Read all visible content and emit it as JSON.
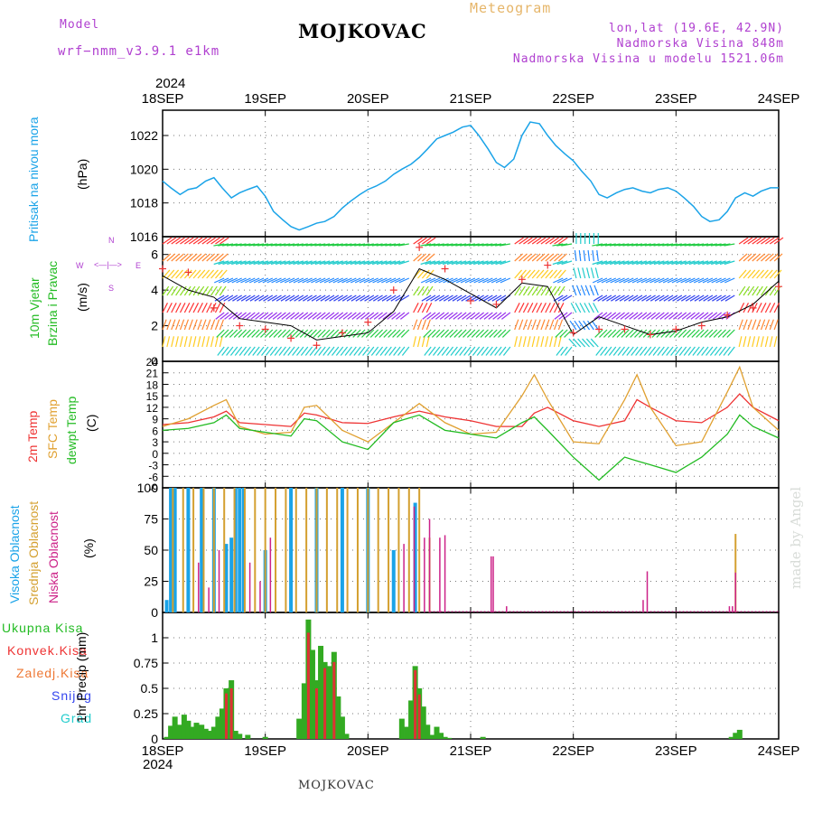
{
  "header": {
    "model_label": "Model",
    "model_name": "wrf−nmm_v3.9.1 e1km",
    "station": "MOJKOVAC",
    "app_title": "Meteogram",
    "coords": "lon,lat (19.6E, 42.9N)",
    "elevation": "Nadmorska Visina 848m",
    "model_elevation": "Nadmorska Visina u modelu 1521.06m",
    "watermark": "made by Angel",
    "footer": "MOJKOVAC",
    "year": "2024"
  },
  "colors": {
    "pressure": "#1aa3e8",
    "temp2m": "#ee3333",
    "sfc": "#e0a030",
    "dew": "#22bb22",
    "high_cloud": "#1aa3e8",
    "mid_cloud": "#d4a030",
    "low_cloud": "#cc2288",
    "precip_total": "#33aa22",
    "precip_conv": "#dd3333"
  },
  "x_ticks": [
    "18SEP",
    "19SEP",
    "20SEP",
    "21SEP",
    "22SEP",
    "23SEP",
    "24SEP"
  ],
  "chart_data": [
    {
      "type": "line",
      "name": "pressure",
      "ylabel_lines": [
        "Pritisak na nivou mora",
        "(hPa)"
      ],
      "ylim": [
        1016,
        1023.5
      ],
      "yticks": [
        1016,
        1018,
        1020,
        1022
      ],
      "grid": true,
      "series": [
        {
          "x": [
            0,
            0.08,
            0.17,
            0.25,
            0.33,
            0.42,
            0.5,
            0.58,
            0.67,
            0.75,
            0.83,
            0.92,
            1.0,
            1.08,
            1.17,
            1.25,
            1.33,
            1.42,
            1.5,
            1.58,
            1.67,
            1.75,
            1.83,
            1.92,
            2.0,
            2.08,
            2.17,
            2.25,
            2.33,
            2.42,
            2.5,
            2.58,
            2.67,
            2.75,
            2.83,
            2.92,
            3.0,
            3.08,
            3.17,
            3.25,
            3.33,
            3.42,
            3.5,
            3.58,
            3.67,
            3.75,
            3.83,
            3.92,
            4.0,
            4.08,
            4.17,
            4.25,
            4.33,
            4.42,
            4.5,
            4.58,
            4.67,
            4.75,
            4.83,
            4.92,
            5.0,
            5.08,
            5.17,
            5.25,
            5.33,
            5.42,
            5.5,
            5.58,
            5.67,
            5.75,
            5.83,
            5.92,
            6.0
          ],
          "y": [
            1019.3,
            1018.9,
            1018.5,
            1018.8,
            1018.9,
            1019.3,
            1019.5,
            1018.9,
            1018.3,
            1018.6,
            1018.8,
            1019.0,
            1018.4,
            1017.5,
            1017.0,
            1016.6,
            1016.4,
            1016.6,
            1016.8,
            1016.9,
            1017.2,
            1017.7,
            1018.1,
            1018.5,
            1018.8,
            1019.0,
            1019.3,
            1019.7,
            1020.0,
            1020.3,
            1020.7,
            1021.2,
            1021.8,
            1022.0,
            1022.2,
            1022.5,
            1022.6,
            1022.0,
            1021.2,
            1020.4,
            1020.1,
            1020.6,
            1022.0,
            1022.8,
            1022.7,
            1022.0,
            1021.4,
            1020.9,
            1020.5,
            1019.9,
            1019.3,
            1018.5,
            1018.3,
            1018.6,
            1018.8,
            1018.9,
            1018.7,
            1018.6,
            1018.8,
            1018.9,
            1018.7,
            1018.3,
            1017.8,
            1017.2,
            1016.9,
            1017.0,
            1017.5,
            1018.3,
            1018.6,
            1018.4,
            1018.7,
            1018.9,
            1018.9
          ]
        }
      ]
    },
    {
      "type": "line",
      "name": "wind",
      "ylabel_lines": [
        "10m Vjetar",
        "Brzina i Pravac",
        "(m/s)"
      ],
      "compass_labels": {
        "n": "N",
        "s": "S",
        "e": "E",
        "w": "W"
      },
      "ylim": [
        0,
        7
      ],
      "yticks": [
        0,
        2,
        4,
        6
      ],
      "grid": true,
      "series": [
        {
          "label": "speed",
          "x": [
            0,
            0.25,
            0.5,
            0.75,
            1.0,
            1.25,
            1.5,
            1.75,
            2.0,
            2.25,
            2.5,
            2.75,
            3.0,
            3.25,
            3.5,
            3.75,
            4.0,
            4.25,
            4.5,
            4.75,
            5.0,
            5.25,
            5.5,
            5.75,
            6.0
          ],
          "y": [
            4.8,
            4.0,
            3.6,
            2.4,
            2.2,
            2.0,
            1.2,
            1.4,
            1.6,
            2.8,
            5.2,
            4.6,
            3.8,
            3.0,
            4.4,
            4.2,
            1.5,
            2.5,
            2.0,
            1.5,
            1.7,
            2.2,
            2.5,
            3.2,
            4.5
          ]
        },
        {
          "label": "gust",
          "x": [
            0,
            0.25,
            0.5,
            0.75,
            1.0,
            1.25,
            1.5,
            1.75,
            2.0,
            2.25,
            2.5,
            2.75,
            3.0,
            3.25,
            3.5,
            3.75,
            4.0,
            4.25,
            4.5,
            4.75,
            5.0,
            5.25,
            5.5,
            5.75,
            6.0
          ],
          "y": [
            5.2,
            5.0,
            3.0,
            2.0,
            1.8,
            1.3,
            0.9,
            1.6,
            2.2,
            4.0,
            6.4,
            5.2,
            3.4,
            3.2,
            4.6,
            5.4,
            1.6,
            1.8,
            1.8,
            1.5,
            1.8,
            2.0,
            2.6,
            3.0,
            4.2
          ]
        }
      ]
    },
    {
      "type": "line",
      "name": "temperature",
      "ylabel_lines": [
        "2m Temp",
        "SFC Temp",
        "dewpt Temp",
        "(C)"
      ],
      "ylim": [
        -9,
        24
      ],
      "yticks": [
        -9,
        -6,
        -3,
        0,
        3,
        6,
        9,
        12,
        15,
        18,
        21,
        24
      ],
      "grid": true,
      "series": [
        {
          "name": "2m Temp",
          "x": [
            0,
            0.25,
            0.5,
            0.62,
            0.75,
            1.0,
            1.25,
            1.38,
            1.5,
            1.75,
            2.0,
            2.25,
            2.5,
            2.75,
            3.0,
            3.25,
            3.5,
            3.62,
            3.75,
            4.0,
            4.25,
            4.5,
            4.62,
            4.75,
            5.0,
            5.25,
            5.5,
            5.62,
            5.75,
            6.0
          ],
          "y": [
            7.5,
            8.0,
            9.5,
            11.0,
            8.0,
            7.5,
            7.0,
            10.5,
            10.0,
            8.0,
            7.8,
            9.5,
            11.0,
            9.5,
            8.5,
            7.0,
            7.0,
            10.5,
            12.0,
            8.5,
            7.0,
            8.5,
            14.0,
            12.0,
            8.5,
            8.0,
            12.0,
            15.5,
            12.0,
            8.5
          ]
        },
        {
          "name": "SFC Temp",
          "x": [
            0,
            0.25,
            0.5,
            0.62,
            0.75,
            1.0,
            1.25,
            1.38,
            1.5,
            1.75,
            2.0,
            2.25,
            2.5,
            2.75,
            3.0,
            3.25,
            3.5,
            3.62,
            3.75,
            4.0,
            4.25,
            4.5,
            4.62,
            4.75,
            5.0,
            5.25,
            5.5,
            5.62,
            5.75,
            6.0
          ],
          "y": [
            7.0,
            9.0,
            12.5,
            14.0,
            7.0,
            5.0,
            5.5,
            12.0,
            12.5,
            6.0,
            3.0,
            8.0,
            13.0,
            8.0,
            5.0,
            5.5,
            15.0,
            20.5,
            14.0,
            3.0,
            2.5,
            14.0,
            20.5,
            12.0,
            2.0,
            3.0,
            16.0,
            22.5,
            12.0,
            6.0
          ]
        },
        {
          "name": "dewpt Temp",
          "x": [
            0,
            0.25,
            0.5,
            0.62,
            0.75,
            1.0,
            1.25,
            1.38,
            1.5,
            1.75,
            2.0,
            2.25,
            2.5,
            2.75,
            3.0,
            3.25,
            3.5,
            3.62,
            3.75,
            4.0,
            4.25,
            4.5,
            4.62,
            4.75,
            5.0,
            5.25,
            5.5,
            5.62,
            5.75,
            6.0
          ],
          "y": [
            6.0,
            6.5,
            8.0,
            10.0,
            6.5,
            5.5,
            4.5,
            9.0,
            8.5,
            3.0,
            1.0,
            8.0,
            10.0,
            6.0,
            5.0,
            4.0,
            8.0,
            9.5,
            6.0,
            -1.0,
            -7.0,
            -1.0,
            -2.0,
            -3.0,
            -5.0,
            -1.0,
            5.0,
            10.0,
            7.0,
            4.0
          ]
        }
      ]
    },
    {
      "type": "bar",
      "name": "cloud_cover",
      "ylabel_lines": [
        "Visoka Oblacnost",
        "Srednja Oblacnost",
        "Niska Oblacnost",
        "(%)"
      ],
      "ylim": [
        0,
        100
      ],
      "yticks": [
        0,
        25,
        50,
        75,
        100
      ],
      "grid": true,
      "series": [
        {
          "name": "Visoka Oblacnost",
          "x": [
            0.04,
            0.08,
            0.12,
            0.25,
            0.38,
            0.5,
            0.62,
            0.67,
            0.71,
            0.75,
            0.79,
            1.0,
            1.25,
            1.5,
            1.75,
            2.0,
            2.25,
            2.46
          ],
          "values": [
            10,
            100,
            100,
            100,
            100,
            100,
            55,
            60,
            100,
            100,
            100,
            50,
            100,
            100,
            100,
            100,
            50,
            88
          ]
        },
        {
          "name": "Srednja Oblacnost",
          "x": [
            0.1,
            0.2,
            0.3,
            0.4,
            0.5,
            0.6,
            0.7,
            0.8,
            0.9,
            1.0,
            1.1,
            1.2,
            1.3,
            1.4,
            1.5,
            1.6,
            1.7,
            1.8,
            1.9,
            2.0,
            2.1,
            2.2,
            2.3,
            2.4,
            2.5,
            2.6,
            5.58
          ],
          "values": [
            100,
            100,
            100,
            100,
            100,
            100,
            100,
            100,
            100,
            100,
            100,
            100,
            100,
            100,
            100,
            100,
            100,
            100,
            100,
            100,
            100,
            100,
            100,
            100,
            100,
            60,
            63
          ]
        },
        {
          "name": "Niska Oblacnost",
          "x": [
            0.35,
            0.45,
            0.55,
            0.85,
            0.95,
            1.05,
            2.35,
            2.45,
            2.55,
            2.6,
            2.7,
            2.75,
            3.2,
            3.22,
            3.35,
            4.68,
            4.72,
            5.52,
            5.55,
            5.58
          ],
          "values": [
            40,
            20,
            50,
            40,
            25,
            60,
            55,
            85,
            60,
            75,
            60,
            62,
            45,
            45,
            5,
            10,
            33,
            5,
            5,
            32
          ]
        }
      ]
    },
    {
      "type": "bar",
      "name": "precipitation",
      "ylabel_lines": [
        "1hr Precip (mm)"
      ],
      "legend": [
        "Ukupna Kisa",
        "Konvek.Kisa",
        "Zaledj.Kisa",
        "Snijeg",
        "Grad"
      ],
      "ylim": [
        0,
        1.25
      ],
      "yticks": [
        0,
        0.25,
        0.5,
        0.75,
        1
      ],
      "grid": true,
      "series": [
        {
          "name": "Ukupna Kisa",
          "x": [
            0.04,
            0.08,
            0.12,
            0.17,
            0.21,
            0.25,
            0.29,
            0.33,
            0.38,
            0.42,
            0.46,
            0.5,
            0.54,
            0.58,
            0.62,
            0.67,
            0.71,
            0.75,
            0.83,
            1.0,
            1.33,
            1.38,
            1.42,
            1.46,
            1.5,
            1.54,
            1.58,
            1.62,
            1.67,
            1.71,
            1.75,
            1.79,
            2.33,
            2.38,
            2.42,
            2.46,
            2.5,
            2.54,
            2.58,
            2.62,
            2.67,
            2.71,
            2.75,
            2.79,
            3.12,
            5.54,
            5.58,
            5.62
          ],
          "values": [
            0.02,
            0.13,
            0.22,
            0.14,
            0.24,
            0.18,
            0.12,
            0.16,
            0.14,
            0.1,
            0.08,
            0.12,
            0.22,
            0.3,
            0.5,
            0.58,
            0.08,
            0.05,
            0.04,
            0.02,
            0.2,
            0.55,
            1.18,
            0.88,
            0.58,
            0.92,
            0.76,
            0.72,
            0.86,
            0.42,
            0.22,
            0.05,
            0.2,
            0.12,
            0.38,
            0.72,
            0.5,
            0.32,
            0.14,
            0.04,
            0.12,
            0.06,
            0.02,
            0.01,
            0.02,
            0.02,
            0.06,
            0.09
          ]
        },
        {
          "name": "Konvek.Kisa",
          "x": [
            0.62,
            0.67,
            1.42,
            1.5,
            1.58,
            1.67,
            2.46,
            2.5
          ],
          "values": [
            0.45,
            0.5,
            1.05,
            0.5,
            0.7,
            0.76,
            0.68,
            0.44
          ]
        }
      ]
    }
  ]
}
